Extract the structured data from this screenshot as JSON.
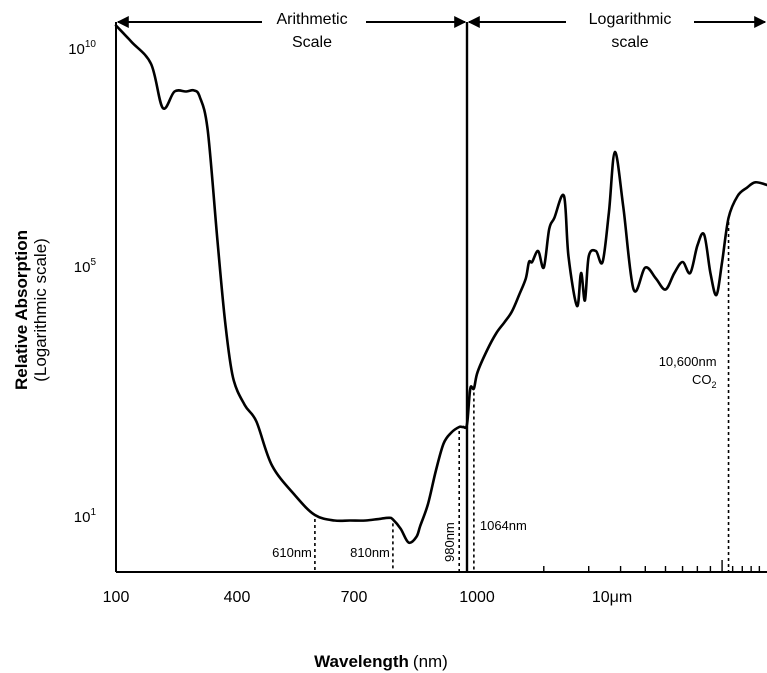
{
  "chart_data": {
    "type": "line",
    "title": "",
    "xlabel": "Wavelength",
    "xlabel_unit": "(nm)",
    "ylabel": "Relative Absorption",
    "ylabel_sub": "(Logarithmic scale)",
    "y_scale": "log",
    "y_ticks": [
      {
        "value": 10,
        "base": "10",
        "exp": "1"
      },
      {
        "value": 100000,
        "base": "10",
        "exp": "5"
      },
      {
        "value": 10000000000,
        "base": "10",
        "exp": "10"
      }
    ],
    "x_ticks": [
      "100",
      "400",
      "700",
      "1000",
      "10μm"
    ],
    "x_axis_regions": [
      {
        "name": "arithmetic",
        "range_nm": [
          100,
          1000
        ],
        "label_line1": "Arithmetic",
        "label_line2": "Scale"
      },
      {
        "name": "logarithmic",
        "range_nm": [
          1000,
          15000
        ],
        "label_line1": "Logarithmic",
        "label_line2": "scale"
      }
    ],
    "series": [
      {
        "x_nm": [
          100,
          140,
          190,
          220,
          250,
          280,
          300,
          315,
          335,
          360,
          380,
          400,
          430,
          460,
          500,
          560,
          610,
          660,
          700,
          740,
          775,
          800,
          810,
          830,
          850,
          870,
          880,
          900,
          920,
          940,
          960,
          980,
          990,
          1000,
          1030,
          1064,
          1100,
          1200,
          1300,
          1400,
          1500,
          1600,
          1700,
          1750,
          1800,
          1900,
          2000,
          2100,
          2200,
          2400,
          2500,
          2700,
          2800,
          2900,
          3000,
          3200,
          3400,
          3600,
          3800,
          4100,
          4500,
          5000,
          5500,
          6000,
          6500,
          7000,
          7500,
          8000,
          8500,
          9000,
          9500,
          10000,
          10600,
          11500,
          12500,
          13500,
          15000
        ],
        "y_log10": [
          9.9,
          9.6,
          9.2,
          8.4,
          8.7,
          8.7,
          8.72,
          8.6,
          8.0,
          6.0,
          4.5,
          3.5,
          3.0,
          2.7,
          1.9,
          1.35,
          1.0,
          0.9,
          0.9,
          0.9,
          0.93,
          0.95,
          0.92,
          0.75,
          0.5,
          0.6,
          0.8,
          1.2,
          1.8,
          2.3,
          2.5,
          2.6,
          2.6,
          2.65,
          3.3,
          3.3,
          3.6,
          4.0,
          4.3,
          4.5,
          4.7,
          5.0,
          5.3,
          5.6,
          5.6,
          5.8,
          5.5,
          6.2,
          6.4,
          6.8,
          5.7,
          4.8,
          5.4,
          4.9,
          5.7,
          5.8,
          5.6,
          6.5,
          7.6,
          6.6,
          5.1,
          5.5,
          5.3,
          5.1,
          5.4,
          5.6,
          5.4,
          5.9,
          6.1,
          5.4,
          5.0,
          5.6,
          6.4,
          6.8,
          6.95,
          7.05,
          7.0
        ]
      }
    ],
    "annotations": [
      {
        "x_nm": 610,
        "text": "610nm"
      },
      {
        "x_nm": 810,
        "text": "810nm"
      },
      {
        "x_nm": 980,
        "text": "980nm",
        "rotated": true
      },
      {
        "x_nm": 1064,
        "text": "1064nm"
      },
      {
        "x_nm": 10600,
        "text": "10,600nm",
        "text2": "CO",
        "text2_sub": "2"
      }
    ]
  }
}
